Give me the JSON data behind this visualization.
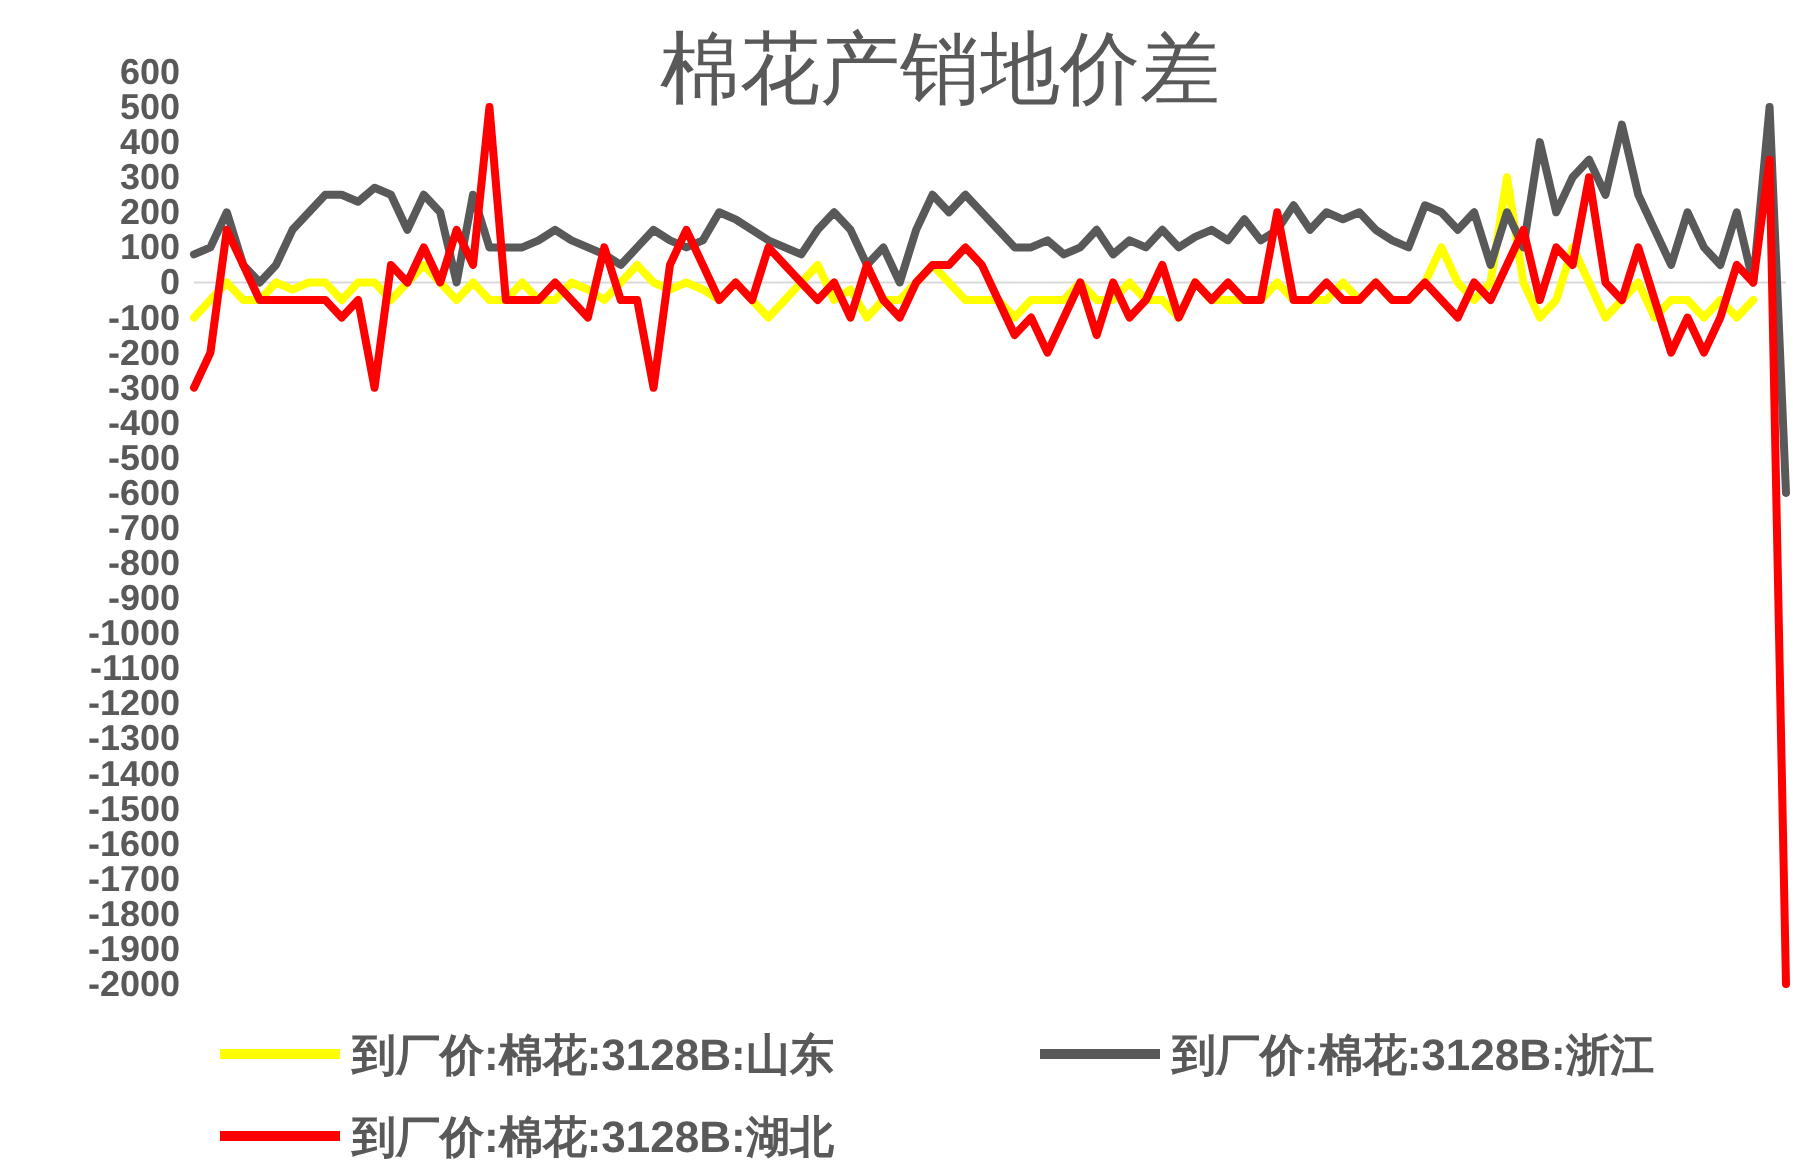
{
  "chart_data": {
    "type": "line",
    "title": "棉花产销地价差",
    "categories": [
      null,
      null,
      null,
      null,
      null,
      null,
      null,
      null,
      null,
      null,
      null,
      null,
      null,
      null,
      null,
      null,
      null,
      null,
      null,
      null,
      null,
      null,
      null,
      null,
      null,
      null,
      null,
      null,
      null,
      null,
      null,
      null,
      null,
      null,
      null,
      null,
      null,
      null,
      null,
      null,
      null,
      null,
      null,
      null,
      null,
      null,
      null,
      null,
      null,
      null,
      null,
      null,
      null,
      null,
      null,
      null,
      null,
      null,
      null,
      null,
      null,
      null,
      null,
      null,
      null,
      null,
      null,
      null,
      null,
      null,
      null,
      null,
      null,
      null,
      null,
      null,
      null,
      null,
      null,
      null,
      null,
      null,
      null,
      null,
      null,
      null,
      null,
      null,
      null,
      null,
      null,
      null,
      null,
      null,
      null,
      null,
      null,
      null
    ],
    "ylim": [
      -2000,
      600
    ],
    "yticks": [
      -2000,
      -1900,
      -1800,
      -1700,
      -1600,
      -1500,
      -1400,
      -1300,
      -1200,
      -1100,
      -1000,
      -900,
      -800,
      -700,
      -600,
      -500,
      -400,
      -300,
      -200,
      -100,
      0,
      100,
      200,
      300,
      400,
      500,
      600
    ],
    "tick_labels": "y",
    "legend": "bottom",
    "marker": "none",
    "line_style": "solid",
    "ref_lines": [
      {
        "axis": "y",
        "value": 0,
        "color": "#d9d9d9"
      }
    ],
    "series": [
      {
        "name": "到厂价:棉花:3128B:山东",
        "color": "#ffff00",
        "values": [
          -100,
          -50,
          0,
          -50,
          -50,
          0,
          -20,
          0,
          0,
          -50,
          0,
          0,
          -50,
          0,
          50,
          0,
          -50,
          0,
          -50,
          -50,
          0,
          -50,
          -50,
          0,
          -20,
          -50,
          0,
          50,
          0,
          -20,
          0,
          -20,
          -50,
          0,
          -50,
          -100,
          -50,
          0,
          50,
          -50,
          -20,
          -100,
          -50,
          -50,
          0,
          50,
          0,
          -50,
          -50,
          -50,
          -100,
          -50,
          -50,
          -50,
          0,
          -50,
          -50,
          0,
          -50,
          -50,
          -100,
          0,
          -50,
          -50,
          -50,
          -50,
          0,
          -50,
          -50,
          -50,
          0,
          -50,
          0,
          -50,
          -50,
          0,
          100,
          0,
          -50,
          0,
          300,
          0,
          -100,
          -50,
          100,
          0,
          -100,
          -50,
          0,
          -100,
          -50,
          -50,
          -100,
          -50,
          -100,
          -50,
          null,
          null
        ]
      },
      {
        "name": "到厂价:棉花:3128B:浙江",
        "color": "#595959",
        "values": [
          80,
          100,
          200,
          50,
          0,
          50,
          150,
          200,
          250,
          250,
          230,
          270,
          250,
          150,
          250,
          200,
          0,
          250,
          100,
          100,
          100,
          120,
          150,
          120,
          100,
          80,
          50,
          100,
          150,
          120,
          100,
          120,
          200,
          180,
          150,
          120,
          100,
          80,
          150,
          200,
          150,
          50,
          100,
          0,
          150,
          250,
          200,
          250,
          200,
          150,
          100,
          100,
          120,
          80,
          100,
          150,
          80,
          120,
          100,
          150,
          100,
          130,
          150,
          120,
          180,
          120,
          150,
          220,
          150,
          200,
          180,
          200,
          150,
          120,
          100,
          220,
          200,
          150,
          200,
          50,
          200,
          100,
          400,
          200,
          300,
          350,
          250,
          450,
          250,
          150,
          50,
          200,
          100,
          50,
          200,
          0,
          500,
          -600
        ]
      },
      {
        "name": "到厂价:棉花:3128B:湖北",
        "color": "#ff0000",
        "values": [
          -300,
          -200,
          150,
          50,
          -50,
          -50,
          -50,
          -50,
          -50,
          -100,
          -50,
          -300,
          50,
          0,
          100,
          0,
          150,
          50,
          500,
          -50,
          -50,
          -50,
          0,
          -50,
          -100,
          100,
          -50,
          -50,
          -300,
          50,
          150,
          50,
          -50,
          0,
          -50,
          100,
          50,
          0,
          -50,
          0,
          -100,
          50,
          -50,
          -100,
          0,
          50,
          50,
          100,
          50,
          -50,
          -150,
          -100,
          -200,
          -100,
          0,
          -150,
          0,
          -100,
          -50,
          50,
          -100,
          0,
          -50,
          0,
          -50,
          -50,
          200,
          -50,
          -50,
          0,
          -50,
          -50,
          0,
          -50,
          -50,
          0,
          -50,
          -100,
          0,
          -50,
          50,
          150,
          -50,
          100,
          50,
          300,
          0,
          -50,
          100,
          -50,
          -200,
          -100,
          -200,
          -100,
          50,
          0,
          350,
          -2000
        ]
      }
    ]
  }
}
